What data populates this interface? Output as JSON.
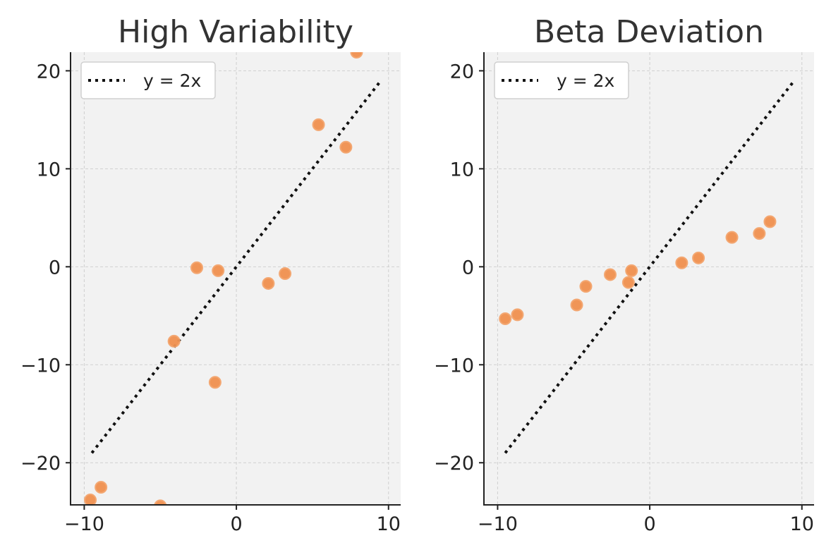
{
  "chart_data": [
    {
      "type": "scatter",
      "title": "High Variability",
      "xlabel": "",
      "ylabel": "",
      "xlim": [
        -10.9,
        10.8
      ],
      "ylim": [
        -24.3,
        21.9
      ],
      "xticks": [
        -10,
        0,
        10
      ],
      "xtick_labels": [
        "−10",
        "0",
        "10"
      ],
      "yticks": [
        -20,
        -10,
        0,
        10,
        20
      ],
      "ytick_labels": [
        "−20",
        "−10",
        "0",
        "10",
        "20"
      ],
      "grid": true,
      "legend": {
        "location": "top-left",
        "entries": [
          "y = 2x"
        ]
      },
      "reference_line": {
        "label": "y = 2x",
        "slope": 2,
        "intercept": 0,
        "x_range": [
          -9.5,
          9.5
        ],
        "style": "dotted"
      },
      "points": {
        "x": [
          -9.6,
          -8.9,
          -5.0,
          -4.1,
          -2.6,
          -1.4,
          -1.2,
          2.1,
          3.2,
          5.4,
          7.2,
          7.9
        ],
        "y": [
          -23.8,
          -22.5,
          -24.4,
          -7.6,
          -0.1,
          -11.8,
          -0.4,
          -1.7,
          -0.7,
          14.5,
          12.2,
          21.9
        ]
      }
    },
    {
      "type": "scatter",
      "title": "Beta Deviation",
      "xlabel": "",
      "ylabel": "",
      "xlim": [
        -10.9,
        10.8
      ],
      "ylim": [
        -24.3,
        21.9
      ],
      "xticks": [
        -10,
        0,
        10
      ],
      "xtick_labels": [
        "−10",
        "0",
        "10"
      ],
      "yticks": [
        -20,
        -10,
        0,
        10,
        20
      ],
      "ytick_labels": [
        "−20",
        "−10",
        "0",
        "10",
        "20"
      ],
      "grid": true,
      "legend": {
        "location": "top-left",
        "entries": [
          "y = 2x"
        ]
      },
      "reference_line": {
        "label": "y = 2x",
        "slope": 2,
        "intercept": 0,
        "x_range": [
          -9.5,
          9.5
        ],
        "style": "dotted"
      },
      "points": {
        "x": [
          -9.5,
          -8.7,
          -4.8,
          -4.2,
          -2.6,
          -1.4,
          -1.2,
          2.1,
          3.2,
          5.4,
          7.2,
          7.9
        ],
        "y": [
          -5.3,
          -4.9,
          -3.9,
          -2.0,
          -0.8,
          -1.6,
          -0.4,
          0.4,
          0.9,
          3.0,
          3.4,
          4.6
        ]
      }
    }
  ],
  "colors": {
    "point_fill": "#f0914f",
    "point_edge": "#f4a46c",
    "line": "#111111",
    "plot_background": "#f2f2f2",
    "grid": "#cfcfcf",
    "axis": "#222222",
    "text": "#222222",
    "title": "#333333",
    "legend_background": "#ffffff",
    "legend_border": "#d0d0d0"
  }
}
